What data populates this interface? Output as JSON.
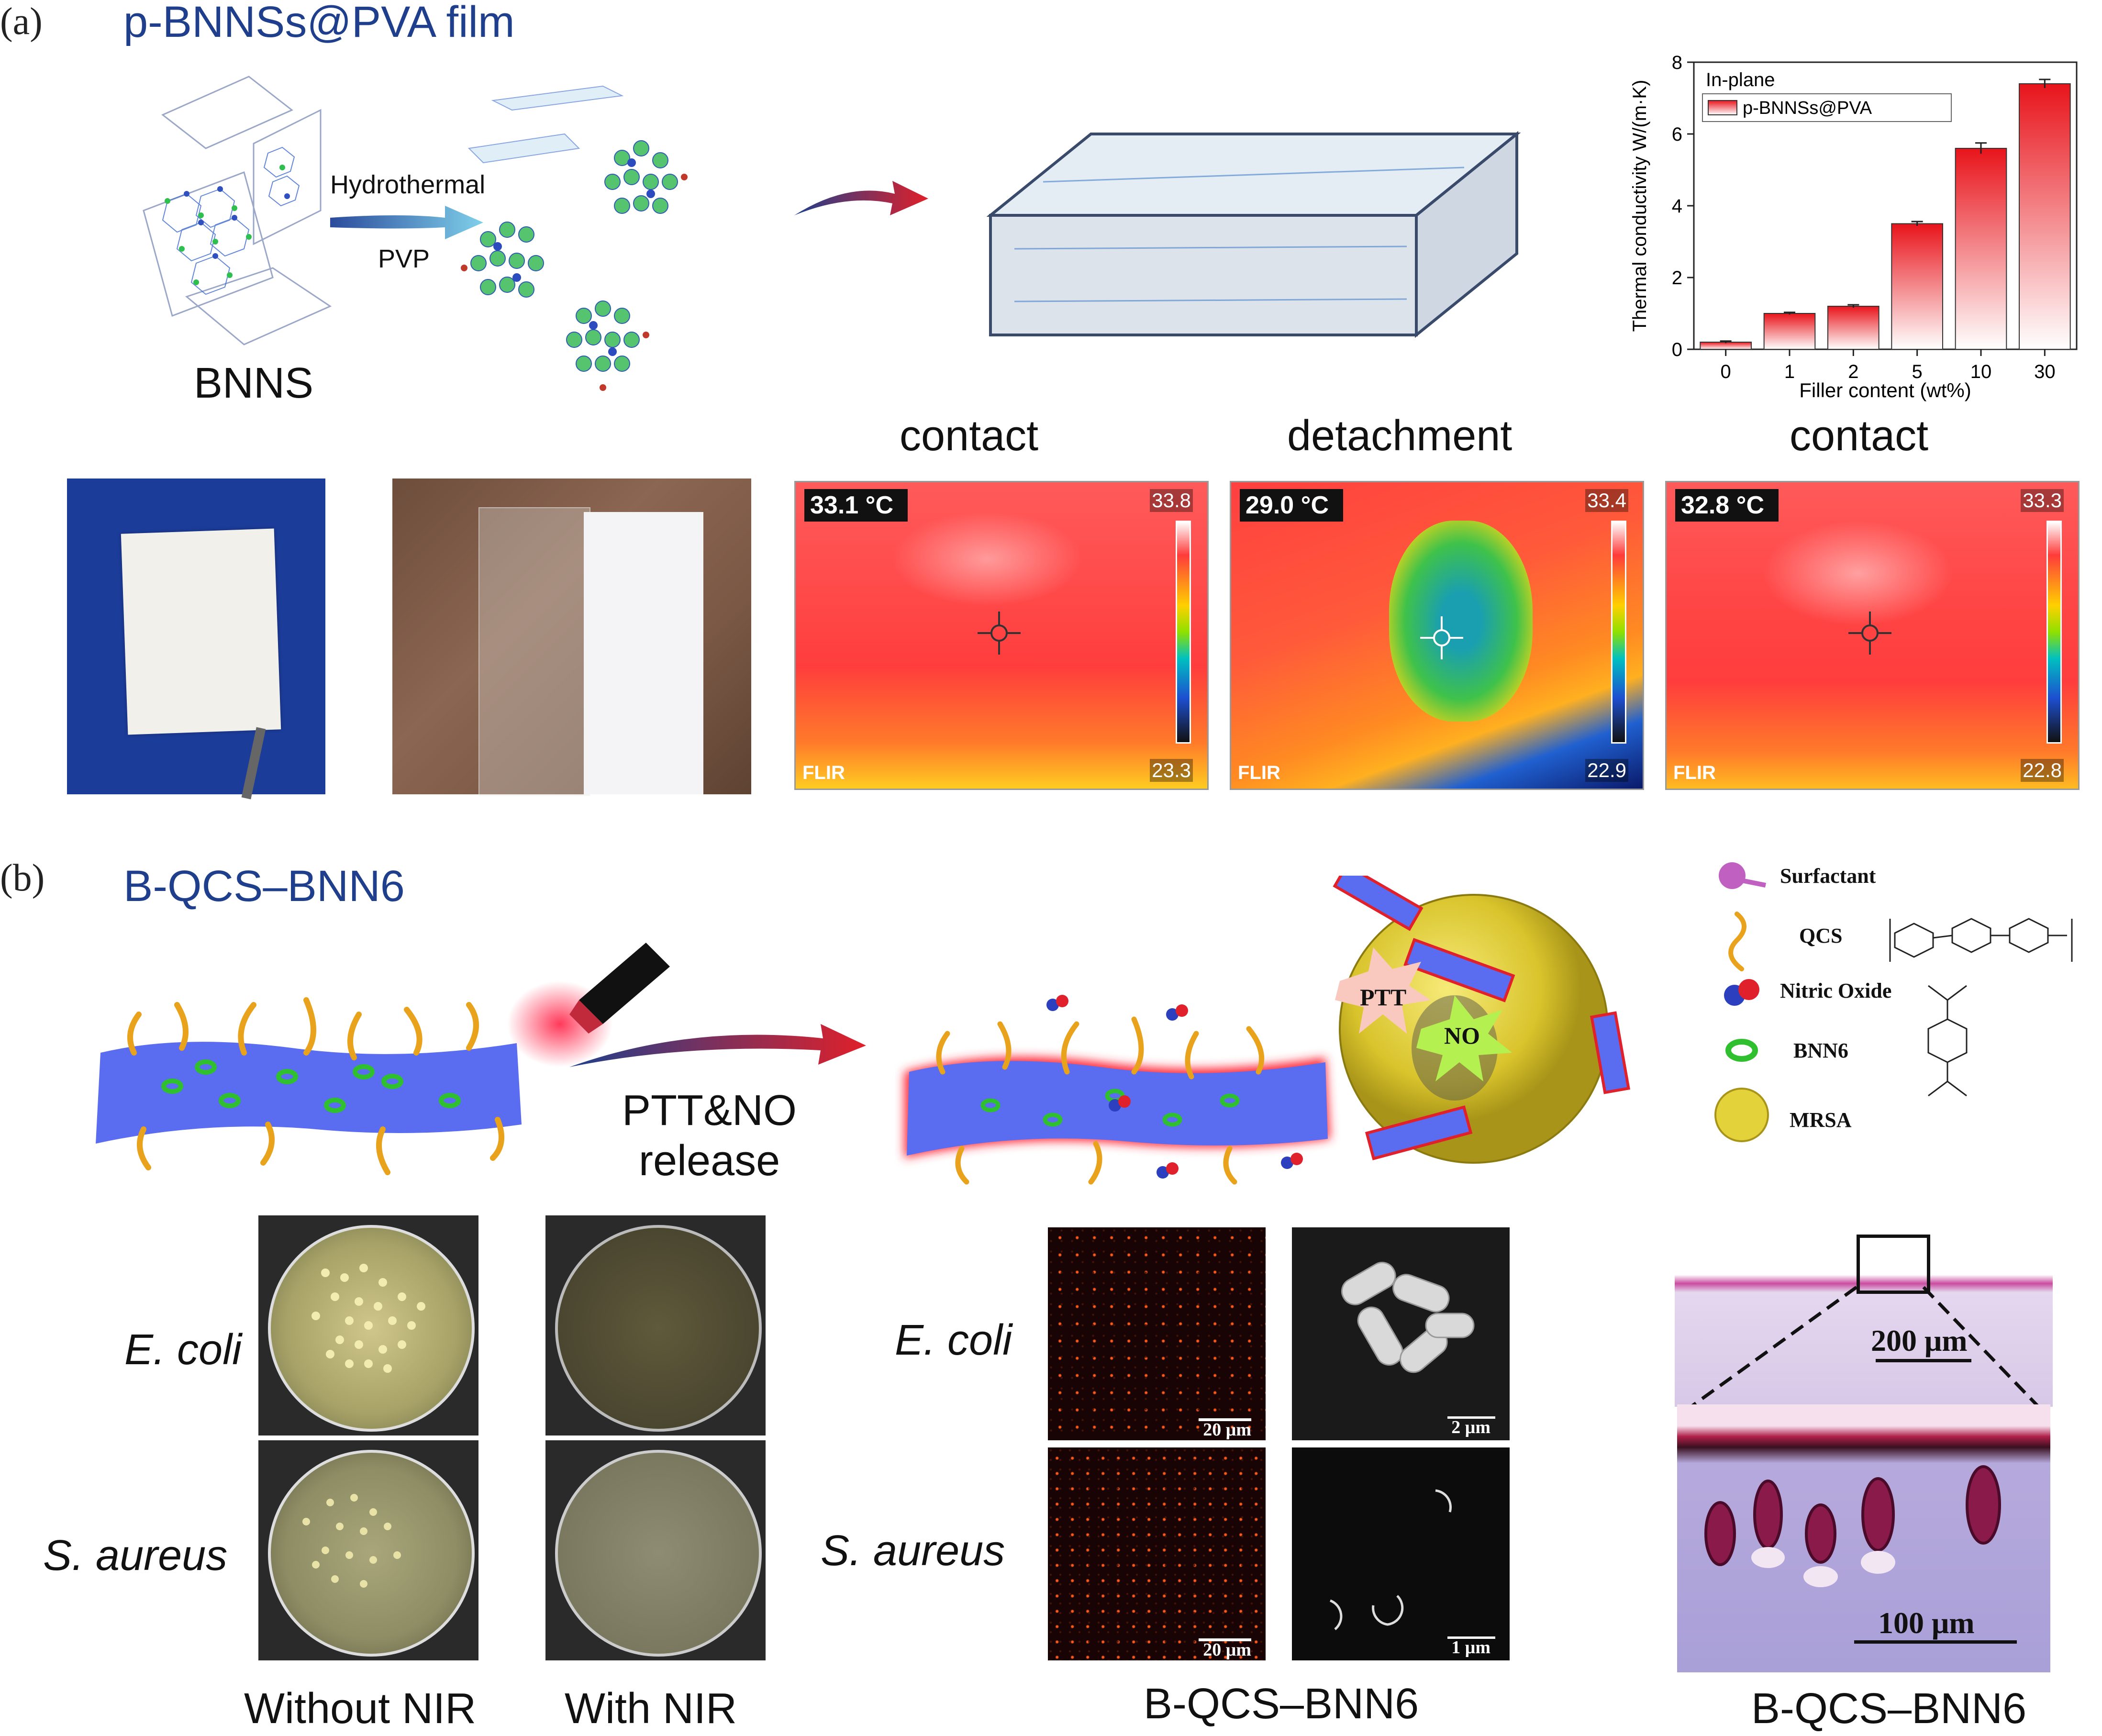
{
  "panel_a": {
    "letter": "(a)",
    "title": "p-BNNSs@PVA film",
    "bnns_label": "BNNS",
    "arrow_top": "Hydrothermal",
    "arrow_bottom": "PVP",
    "thermal_labels": [
      "contact",
      "detachment",
      "contact"
    ],
    "thermal_images": [
      {
        "temp": "33.1 °C",
        "max": "33.8",
        "min": "23.3",
        "brand": "FLIR"
      },
      {
        "temp": "29.0 °C",
        "max": "33.4",
        "min": "22.9",
        "brand": "FLIR"
      },
      {
        "temp": "32.8 °C",
        "max": "33.3",
        "min": "22.8",
        "brand": "FLIR"
      }
    ]
  },
  "chart_data": {
    "type": "bar",
    "title": "In-plane",
    "categories": [
      "0",
      "1",
      "2",
      "5",
      "10",
      "30"
    ],
    "series": [
      {
        "name": "p-BNNSs@PVA",
        "values": [
          0.2,
          1.0,
          1.2,
          3.5,
          5.6,
          7.4
        ],
        "errors": [
          0.03,
          0.03,
          0.04,
          0.06,
          0.15,
          0.12
        ]
      }
    ],
    "xlabel": "Filler content (wt%)",
    "ylabel": "Thermal conductivity W/(m·K)",
    "ylim": [
      0,
      8
    ],
    "yticks": [
      0,
      2,
      4,
      6,
      8
    ],
    "legend_position": "top-left",
    "bar_color_top": "#e8141b",
    "bar_color_bottom": "#ffffff"
  },
  "panel_b": {
    "letter": "(b)",
    "title": "B-QCS–BNN6",
    "release_label_1": "PTT&NO",
    "release_label_2": "release",
    "ptt_label": "PTT",
    "no_label": "NO",
    "legend": [
      {
        "label": "Surfactant",
        "icon": "surfactant-icon"
      },
      {
        "label": "QCS",
        "icon": "qcs-chain-icon"
      },
      {
        "label": "Nitric Oxide",
        "icon": "nitric-oxide-icon"
      },
      {
        "label": "BNN6",
        "icon": "bnn6-ring-icon"
      },
      {
        "label": "MRSA",
        "icon": "mrsa-sphere-icon"
      }
    ],
    "row_labels_left": [
      "E. coli",
      "S. aureus"
    ],
    "row_labels_mid": [
      "E. coli",
      "S. aureus"
    ],
    "plate_captions": [
      "Without NIR",
      "With NIR"
    ],
    "micro_caption": "B-QCS–BNN6",
    "histo_caption": "B-QCS–BNN6",
    "scalebars": {
      "fluor_top": "20 μm",
      "fluor_bottom": "20 μm",
      "sem_top": "2 μm",
      "sem_bottom": "1 μm",
      "histo_top": "200 μm",
      "histo_bottom": "100 μm"
    }
  },
  "colors": {
    "title_blue": "#1f3f8c",
    "arrow_red": "#d0202a",
    "sheet_blue": "#5a6df0",
    "qcs_orange": "#e8a21c",
    "bnn6_green": "#2fbf2f",
    "mrsa_yellow": "#e3d23a"
  }
}
